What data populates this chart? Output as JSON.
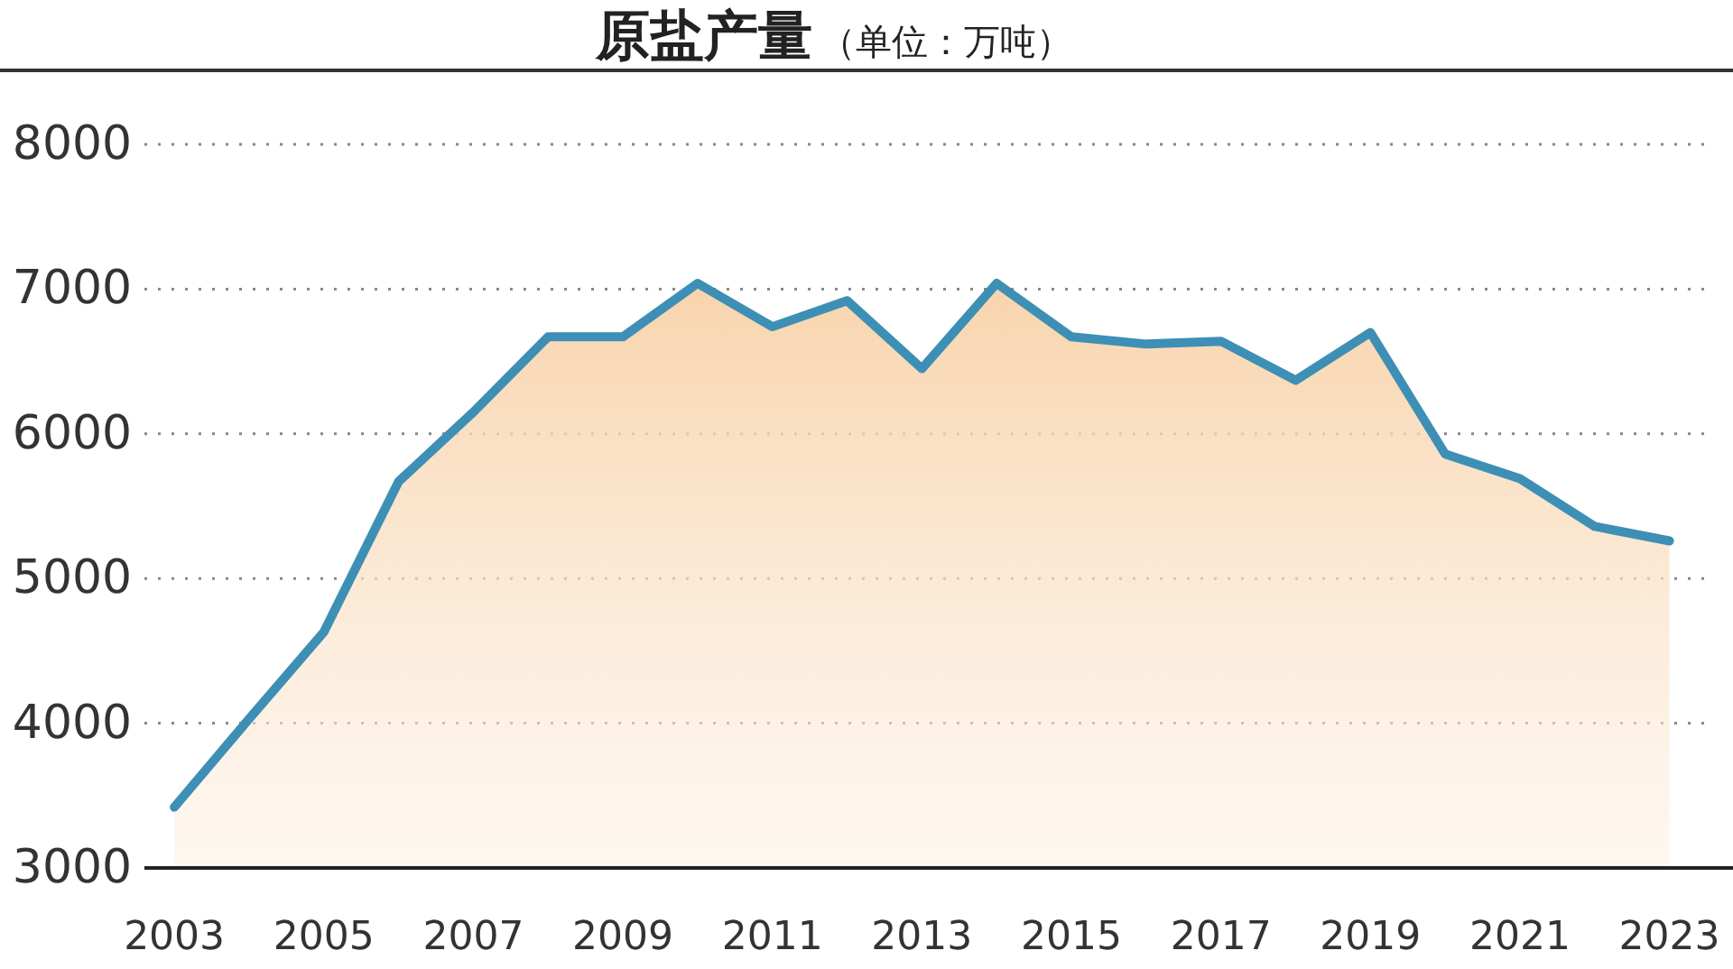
{
  "chart_data": {
    "type": "area",
    "title": "原盐产量",
    "subtitle": "（单位：万吨）",
    "x": [
      2003,
      2004,
      2005,
      2006,
      2007,
      2008,
      2009,
      2010,
      2011,
      2012,
      2013,
      2014,
      2015,
      2016,
      2017,
      2018,
      2019,
      2020,
      2021,
      2022,
      2023
    ],
    "series": [
      {
        "color": "#3d8fb5",
        "values": [
          3420,
          4030,
          4630,
          5670,
          6150,
          6670,
          6670,
          7040,
          6740,
          6920,
          6450,
          7040,
          6670,
          6620,
          6640,
          6370,
          6700,
          5860,
          5690,
          5360,
          5260
        ]
      }
    ],
    "xlim": [
      2002.6,
      2023.85
    ],
    "xticks": [
      2003,
      2005,
      2007,
      2009,
      2011,
      2013,
      2015,
      2017,
      2019,
      2021,
      2023
    ],
    "ylim": [
      3000,
      8000
    ],
    "yticks": [
      3000,
      4000,
      5000,
      6000,
      7000,
      8000
    ],
    "grid": "y",
    "marker": "none",
    "line_style": "solid"
  }
}
